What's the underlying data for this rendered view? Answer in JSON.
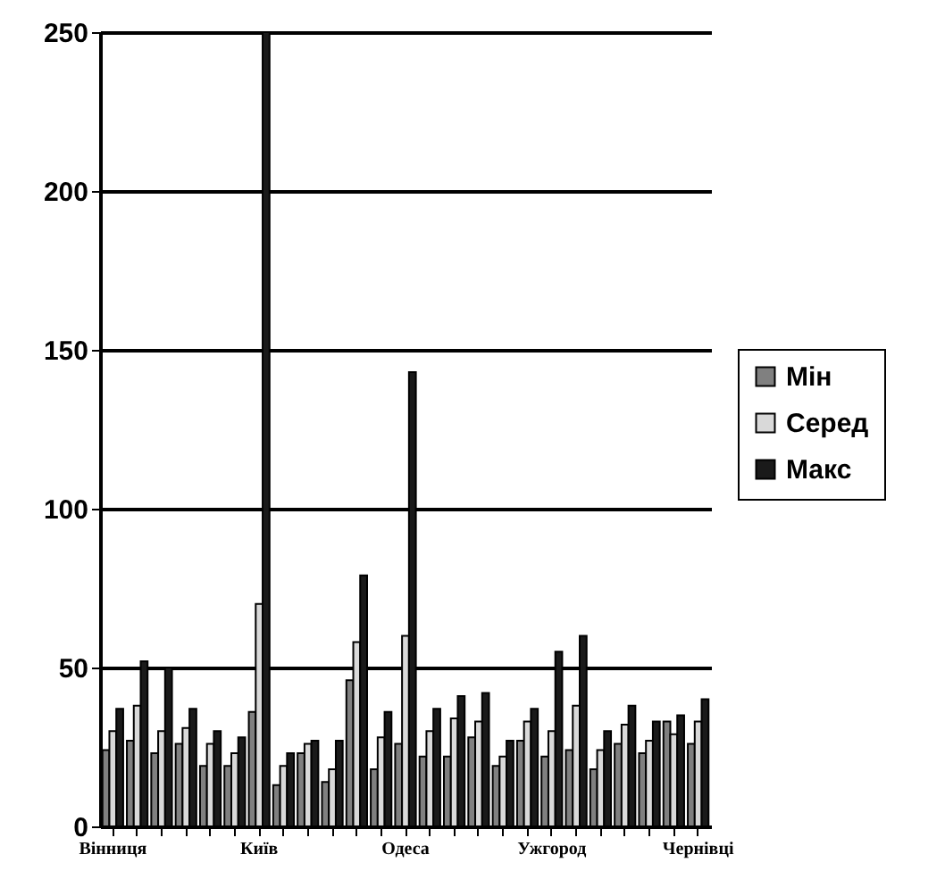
{
  "chart_data": {
    "type": "bar",
    "categories": [
      "Вінниця",
      null,
      null,
      null,
      null,
      null,
      "Київ",
      null,
      null,
      null,
      null,
      null,
      "Одеса",
      null,
      null,
      null,
      null,
      null,
      "Ужгород",
      null,
      null,
      null,
      null,
      null,
      "Чернівці"
    ],
    "series": [
      {
        "name": "Мін",
        "color": "#808080",
        "values": [
          24,
          27,
          23,
          26,
          19,
          19,
          36,
          13,
          23,
          14,
          46,
          18,
          26,
          22,
          22,
          28,
          19,
          27,
          22,
          24,
          18,
          26,
          23,
          33,
          26
        ]
      },
      {
        "name": "Серед",
        "color": "#d9d9d9",
        "values": [
          30,
          38,
          30,
          31,
          26,
          23,
          70,
          19,
          26,
          18,
          58,
          28,
          60,
          30,
          34,
          33,
          22,
          33,
          30,
          38,
          24,
          32,
          27,
          29,
          33
        ]
      },
      {
        "name": "Макс",
        "color": "#1a1a1a",
        "values": [
          37,
          52,
          50,
          37,
          30,
          28,
          250,
          23,
          27,
          27,
          79,
          36,
          143,
          37,
          41,
          42,
          27,
          37,
          55,
          60,
          30,
          38,
          33,
          35,
          40
        ]
      }
    ],
    "ylim": [
      0,
      250
    ],
    "yticks": [
      0,
      50,
      100,
      150,
      200,
      250
    ],
    "grid": "y",
    "legend": "right"
  }
}
